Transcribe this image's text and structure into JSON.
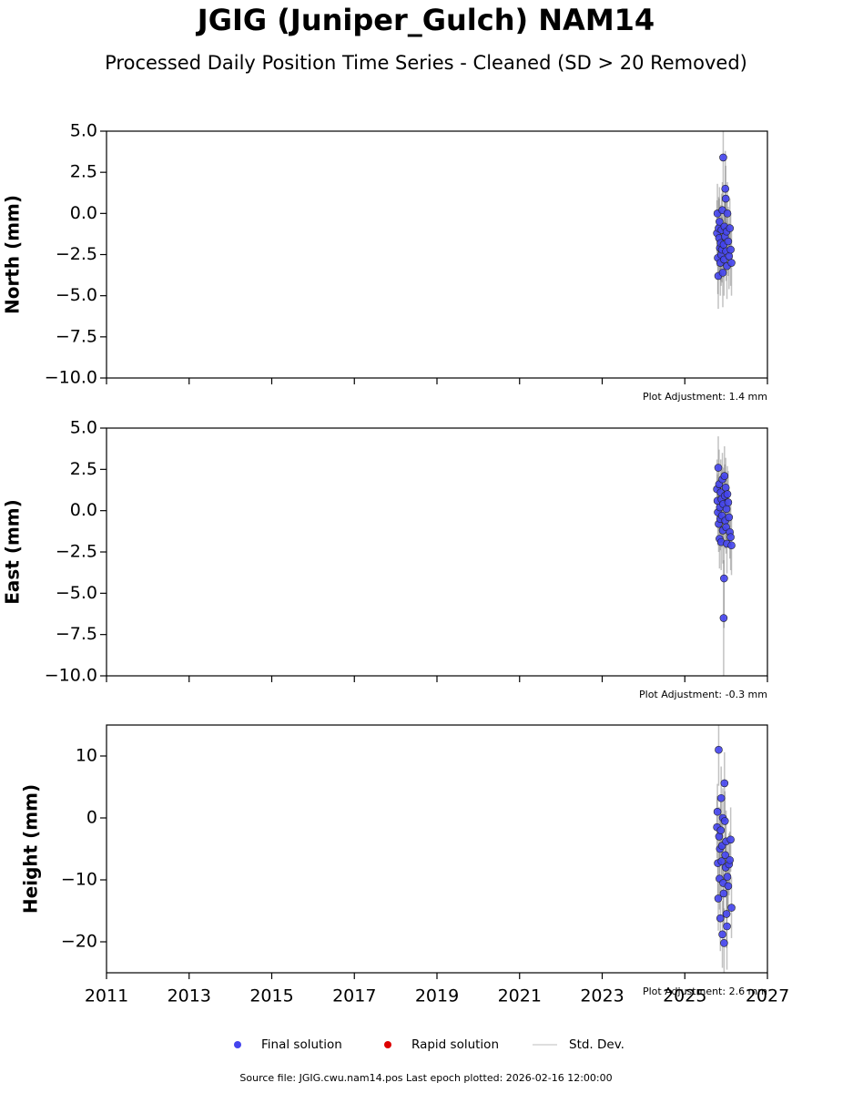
{
  "title": "JGIG (Juniper_Gulch) NAM14",
  "subtitle": "Processed Daily Position Time Series - Cleaned (SD > 20 Removed)",
  "chart_data": [
    {
      "type": "scatter",
      "ylabel": "North (mm)",
      "x": [
        2025.78,
        2025.79,
        2025.8,
        2025.81,
        2025.82,
        2025.83,
        2025.84,
        2025.85,
        2025.86,
        2025.87,
        2025.88,
        2025.89,
        2025.9,
        2025.91,
        2025.92,
        2025.93,
        2025.94,
        2025.95,
        2025.96,
        2025.97,
        2025.98,
        2025.99,
        2026.0,
        2026.01,
        2026.02,
        2026.03,
        2026.05,
        2026.07,
        2026.09,
        2026.11,
        2026.13
      ],
      "series": [
        {
          "name": "Final solution",
          "color": "#4444ee",
          "values": [
            -1.2,
            0.0,
            -2.7,
            -3.8,
            -0.9,
            -1.5,
            -0.5,
            -2.1,
            -3.0,
            -1.8,
            -2.5,
            -1.0,
            -2.2,
            0.2,
            -3.6,
            3.4,
            -1.9,
            -2.8,
            -0.8,
            -1.4,
            1.5,
            0.9,
            -2.3,
            -1.1,
            -3.2,
            0.0,
            -1.7,
            -2.6,
            -0.9,
            -2.2,
            -3.0
          ],
          "errors": [
            2.0,
            1.8,
            2.2,
            2.0,
            1.9,
            2.4,
            2.1,
            1.8,
            2.0,
            2.3,
            1.9,
            2.2,
            2.0,
            1.7,
            2.1,
            2.6,
            2.0,
            2.2,
            1.9,
            2.1,
            2.3,
            2.0,
            1.8,
            2.2,
            2.0,
            1.9,
            2.1,
            2.0,
            1.8,
            2.2,
            2.0
          ]
        },
        {
          "name": "Rapid solution",
          "color": "#dd0000",
          "values": [
            null,
            null,
            null,
            null,
            null,
            null,
            null,
            null,
            null,
            null,
            null,
            null,
            null,
            null,
            null,
            null,
            null,
            null,
            null,
            null,
            null,
            null,
            null,
            null,
            null,
            null,
            null,
            null,
            null,
            null,
            null
          ]
        }
      ],
      "xlim": [
        2011,
        2027
      ],
      "xticks": [
        2011,
        2013,
        2015,
        2017,
        2019,
        2021,
        2023,
        2025,
        2027
      ],
      "show_xtick_labels": false,
      "ylim": [
        -10,
        5
      ],
      "yticks": [
        {
          "value": 5,
          "label": "5.0"
        },
        {
          "value": 2.5,
          "label": "2.5"
        },
        {
          "value": 0,
          "label": "0.0"
        },
        {
          "value": -2.5,
          "label": "−2.5"
        },
        {
          "value": -5,
          "label": "−5.0"
        },
        {
          "value": -7.5,
          "label": "−7.5"
        },
        {
          "value": -10,
          "label": "−10.0"
        }
      ],
      "annotation": "Plot Adjustment: 1.4 mm"
    },
    {
      "type": "scatter",
      "ylabel": "East (mm)",
      "x": [
        2025.78,
        2025.79,
        2025.8,
        2025.81,
        2025.82,
        2025.83,
        2025.84,
        2025.85,
        2025.86,
        2025.87,
        2025.88,
        2025.89,
        2025.9,
        2025.91,
        2025.92,
        2025.93,
        2025.94,
        2025.95,
        2025.96,
        2025.97,
        2025.98,
        2025.99,
        2026.0,
        2026.01,
        2026.02,
        2026.03,
        2026.05,
        2026.07,
        2026.09,
        2026.11,
        2026.13
      ],
      "series": [
        {
          "name": "Final solution",
          "color": "#4444ee",
          "values": [
            1.3,
            0.6,
            -0.1,
            2.6,
            -0.8,
            1.6,
            -1.7,
            0.2,
            -0.5,
            1.1,
            -1.9,
            0.7,
            -0.3,
            1.9,
            -1.2,
            0.4,
            -6.5,
            -4.1,
            2.1,
            0.9,
            -0.6,
            1.4,
            -1.0,
            0.1,
            -2.0,
            1.0,
            0.5,
            -0.4,
            -1.3,
            -1.6,
            -2.1
          ],
          "errors": [
            1.8,
            1.6,
            2.0,
            1.9,
            1.7,
            2.1,
            1.8,
            1.6,
            1.9,
            2.0,
            1.7,
            1.8,
            1.9,
            1.6,
            2.0,
            2.2,
            3.5,
            3.0,
            1.8,
            1.9,
            1.7,
            1.8,
            1.6,
            2.0,
            1.8,
            1.7,
            1.9,
            1.8,
            1.6,
            2.0,
            1.8
          ]
        },
        {
          "name": "Rapid solution",
          "color": "#dd0000",
          "values": [
            null,
            null,
            null,
            null,
            null,
            null,
            null,
            null,
            null,
            null,
            null,
            null,
            null,
            null,
            null,
            null,
            null,
            null,
            null,
            null,
            null,
            null,
            null,
            null,
            null,
            null,
            null,
            null,
            null,
            null,
            null
          ]
        }
      ],
      "xlim": [
        2011,
        2027
      ],
      "xticks": [
        2011,
        2013,
        2015,
        2017,
        2019,
        2021,
        2023,
        2025,
        2027
      ],
      "show_xtick_labels": false,
      "ylim": [
        -10,
        5
      ],
      "yticks": [
        {
          "value": 5,
          "label": "5.0"
        },
        {
          "value": 2.5,
          "label": "2.5"
        },
        {
          "value": 0,
          "label": "0.0"
        },
        {
          "value": -2.5,
          "label": "−2.5"
        },
        {
          "value": -5,
          "label": "−5.0"
        },
        {
          "value": -7.5,
          "label": "−7.5"
        },
        {
          "value": -10,
          "label": "−10.0"
        }
      ],
      "annotation": "Plot Adjustment: -0.3 mm"
    },
    {
      "type": "scatter",
      "ylabel": "Height (mm)",
      "x": [
        2025.78,
        2025.79,
        2025.8,
        2025.81,
        2025.82,
        2025.83,
        2025.84,
        2025.85,
        2025.86,
        2025.87,
        2025.88,
        2025.89,
        2025.9,
        2025.91,
        2025.92,
        2025.93,
        2025.94,
        2025.95,
        2025.96,
        2025.97,
        2025.98,
        2025.99,
        2026.0,
        2026.01,
        2026.02,
        2026.03,
        2026.05,
        2026.07,
        2026.09,
        2026.11,
        2026.13
      ],
      "series": [
        {
          "name": "Final solution",
          "color": "#4444ee",
          "values": [
            -1.5,
            1.0,
            -7.3,
            -13.0,
            11.0,
            -3.0,
            -9.8,
            -5.0,
            -16.2,
            -2.0,
            3.2,
            -7.0,
            -4.5,
            -18.8,
            0.0,
            -10.5,
            -12.2,
            -20.2,
            5.6,
            -0.5,
            -6.0,
            -8.0,
            -3.8,
            -15.5,
            -17.5,
            -9.5,
            -11.0,
            -7.5,
            -6.8,
            -3.5,
            -14.5
          ],
          "errors": [
            5.0,
            4.5,
            5.5,
            5.2,
            5.8,
            4.8,
            5.0,
            4.6,
            5.3,
            4.9,
            5.1,
            4.7,
            5.0,
            5.4,
            4.8,
            6.0,
            5.2,
            5.6,
            5.0,
            4.8,
            5.3,
            4.9,
            5.0,
            5.5,
            7.0,
            5.1,
            4.8,
            5.0,
            4.6,
            5.2,
            4.9
          ]
        },
        {
          "name": "Rapid solution",
          "color": "#dd0000",
          "values": [
            null,
            null,
            null,
            null,
            null,
            null,
            null,
            null,
            null,
            null,
            null,
            null,
            null,
            null,
            null,
            null,
            null,
            null,
            null,
            null,
            null,
            null,
            null,
            null,
            null,
            null,
            null,
            null,
            null,
            null,
            null
          ]
        }
      ],
      "xlim": [
        2011,
        2027
      ],
      "xticks": [
        2011,
        2013,
        2015,
        2017,
        2019,
        2021,
        2023,
        2025,
        2027
      ],
      "show_xtick_labels": true,
      "ylim": [
        -25,
        15
      ],
      "yticks": [
        10,
        0,
        {
          "value": -10,
          "label": "−10"
        },
        {
          "value": -20,
          "label": "−20"
        }
      ],
      "annotation": "Plot Adjustment: 2.6 mm"
    }
  ],
  "legend": [
    {
      "name": "Final solution",
      "color": "#4444ee",
      "marker": "circle"
    },
    {
      "name": "Rapid solution",
      "color": "#dd0000",
      "marker": "circle"
    },
    {
      "name": "Std. Dev.",
      "color": "#d3d3d3",
      "marker": "line"
    }
  ],
  "footer": "Source file: JGIG.cwu.nam14.pos  Last epoch plotted: 2026-02-16 12:00:00"
}
